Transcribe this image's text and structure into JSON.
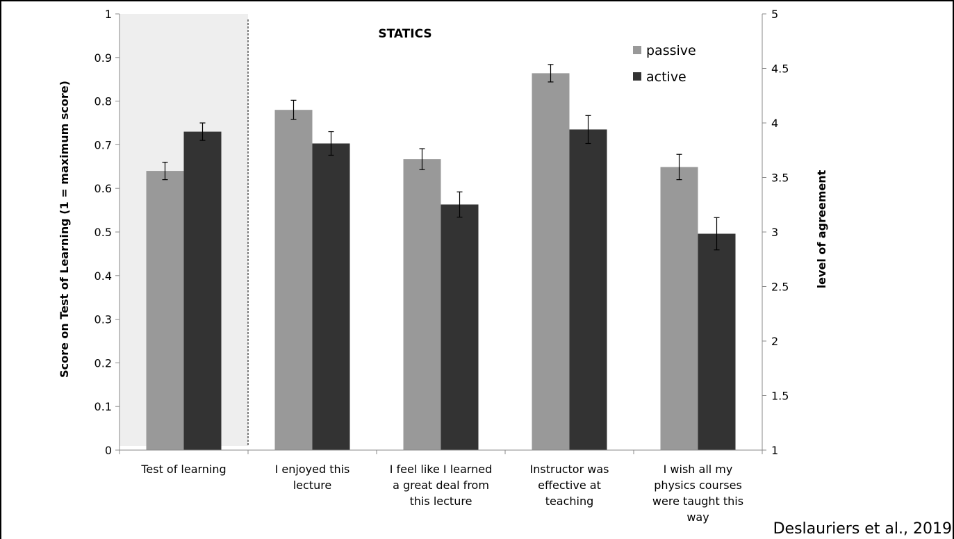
{
  "chart_data": {
    "type": "bar",
    "title": "STATICS",
    "ylabel": "Score on Test of Learning  (1 = maximum score)",
    "y2label": "level of agreement",
    "ylim": [
      0,
      1
    ],
    "y2lim": [
      1,
      5
    ],
    "yticks": [
      "0",
      "0.1",
      "0.2",
      "0.3",
      "0.4",
      "0.5",
      "0.6",
      "0.7",
      "0.8",
      "0.9",
      "1"
    ],
    "y2ticks": [
      "1",
      "1.5",
      "2",
      "2.5",
      "3",
      "3.5",
      "4",
      "4.5",
      "5"
    ],
    "categories": [
      [
        "Test of learning"
      ],
      [
        "I enjoyed this",
        "lecture"
      ],
      [
        "I feel like I learned",
        "a great deal from",
        "this lecture"
      ],
      [
        "Instructor was",
        "effective at",
        "teaching"
      ],
      [
        "I wish all my",
        "physics courses",
        "were taught this",
        "way"
      ]
    ],
    "series": [
      {
        "name": "passive",
        "color": "#999999",
        "values": [
          0.64,
          0.78,
          0.667,
          0.864,
          0.649
        ],
        "errors": [
          0.02,
          0.022,
          0.024,
          0.02,
          0.029
        ]
      },
      {
        "name": "active",
        "color": "#333333",
        "values": [
          0.73,
          0.703,
          0.563,
          0.735,
          0.496
        ],
        "errors": [
          0.02,
          0.027,
          0.029,
          0.032,
          0.037
        ]
      }
    ],
    "highlight": {
      "category": "Test of learning",
      "color": "#eeeeee"
    },
    "legend": "top-right",
    "grid": false,
    "citation": "Deslauriers et al., 2019"
  }
}
